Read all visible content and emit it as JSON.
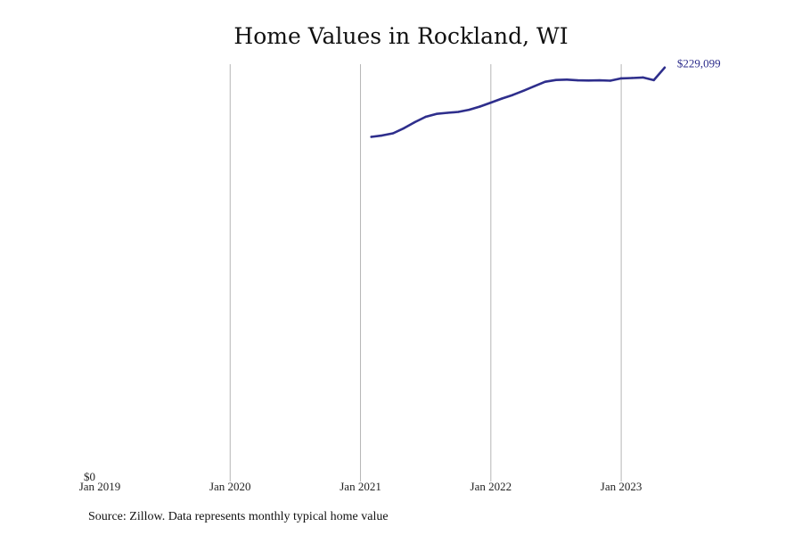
{
  "title": "Home Values in Rockland, WI",
  "source": "Source: Zillow. Data represents monthly typical home value",
  "end_label": "$229,099",
  "colors": {
    "line": "#2e2e8c",
    "grid": "#b5b5b5",
    "text": "#111111"
  },
  "chart_data": {
    "type": "line",
    "title": "Home Values in Rockland, WI",
    "xlabel": "",
    "ylabel": "",
    "x_tick_labels": [
      "Jan 2019",
      "Jan 2020",
      "Jan 2021",
      "Jan 2022",
      "Jan 2023"
    ],
    "y_tick_labels": [
      "$0"
    ],
    "xlim": [
      "2019-01",
      "2023-11"
    ],
    "ylim": [
      0,
      229500
    ],
    "grid": "vertical",
    "legend": "none",
    "series": [
      {
        "x": [
          "2021-02",
          "2021-03",
          "2021-04",
          "2021-05",
          "2021-06",
          "2021-07",
          "2021-08",
          "2021-09",
          "2021-10",
          "2021-11",
          "2021-12",
          "2022-01",
          "2022-02",
          "2022-03",
          "2022-04",
          "2022-05",
          "2022-06",
          "2022-07",
          "2022-08",
          "2022-09",
          "2022-10",
          "2022-11",
          "2022-12",
          "2023-01",
          "2023-02",
          "2023-03",
          "2023-04",
          "2023-05"
        ],
        "values": [
          190500,
          191300,
          192500,
          195300,
          198700,
          201700,
          203300,
          203900,
          204400,
          205600,
          207400,
          209600,
          211800,
          213800,
          216200,
          218700,
          221200,
          222200,
          222400,
          222000,
          221900,
          222000,
          221800,
          223100,
          223300,
          223600,
          222100,
          229099
        ]
      }
    ]
  }
}
